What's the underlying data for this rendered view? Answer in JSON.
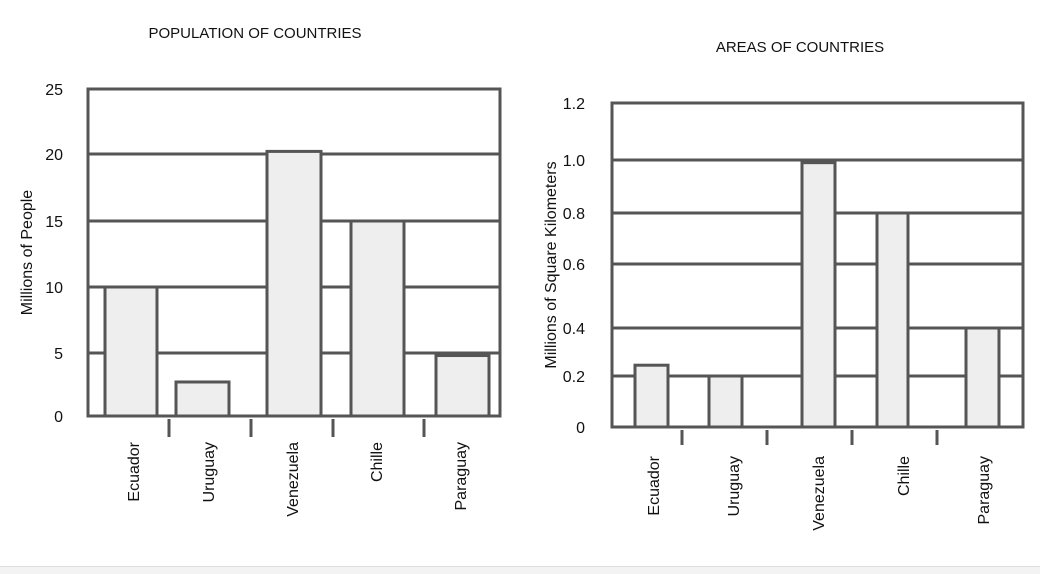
{
  "chart_data": [
    {
      "type": "bar",
      "title": "POPULATION OF COUNTRIES",
      "xlabel": "",
      "ylabel": "Millions of People",
      "categories": [
        "Ecuador",
        "Uruguay",
        "Venezuela",
        "Chille",
        "Paraguay"
      ],
      "values": [
        10,
        2.7,
        20.2,
        15,
        4.8
      ],
      "ylim": [
        0,
        25
      ],
      "yticks": [
        "0",
        "5",
        "10",
        "15",
        "20",
        "25"
      ],
      "grid": true,
      "bar_color": "#eeeeee",
      "line_color": "#555555"
    },
    {
      "type": "bar",
      "title": "AREAS OF COUNTRIES",
      "xlabel": "",
      "ylabel": "Millions of Square Kilometers",
      "categories": [
        "Ecuador",
        "Uruguay",
        "Venezuela",
        "Chille",
        "Paraguay"
      ],
      "values": [
        0.245,
        0.2,
        0.99,
        0.8,
        0.4
      ],
      "ylim": [
        0,
        1.2
      ],
      "yticks": [
        "0",
        "0.2",
        "0.4",
        "0.6",
        "0.8",
        "1.0",
        "1.2"
      ],
      "grid": true,
      "bar_color": "#eeeeee",
      "line_color": "#555555"
    }
  ]
}
